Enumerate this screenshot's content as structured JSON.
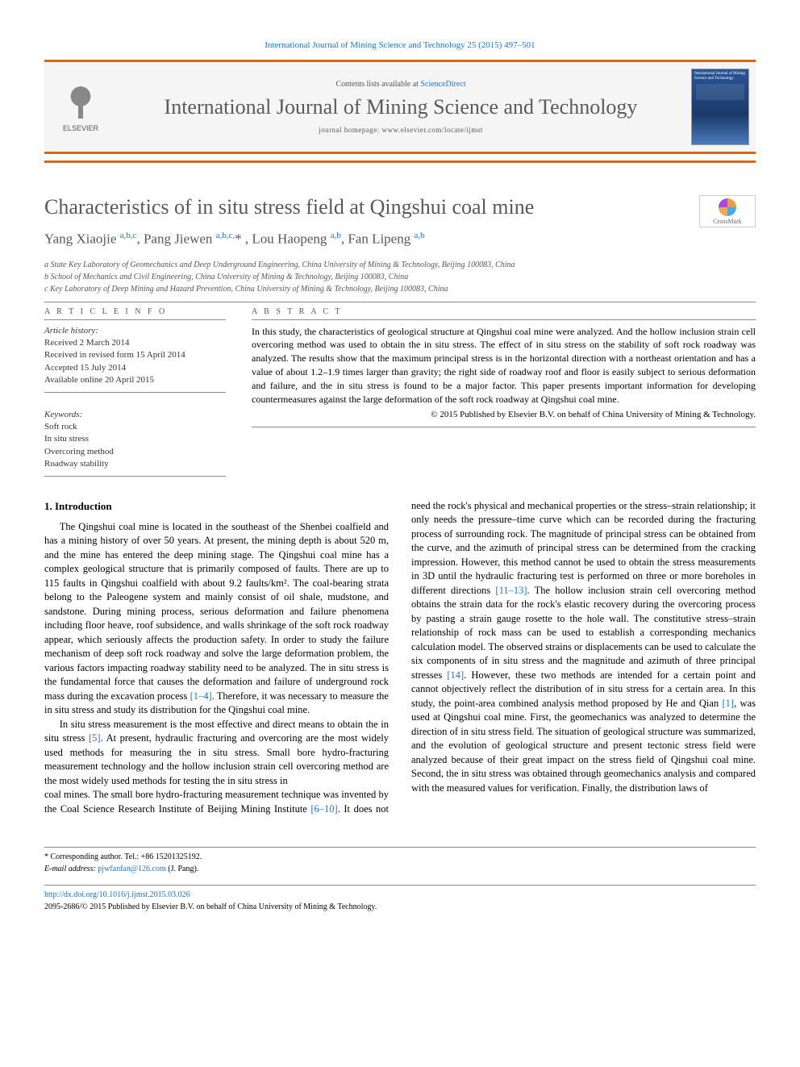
{
  "journal_ref": "International Journal of Mining Science and Technology 25 (2015) 497–501",
  "banner": {
    "contents_prefix": "Contents lists available at ",
    "contents_link": "ScienceDirect",
    "journal_title": "International Journal of Mining Science and Technology",
    "homepage": "journal homepage: www.elsevier.com/locate/ijmst",
    "publisher": "ELSEVIER",
    "cover_mini": "International Journal of Mining Science and Technology"
  },
  "crossmark": "CrossMark",
  "title": "Characteristics of in situ stress field at Qingshui coal mine",
  "authors_html": "Yang Xiaojie <sup>a,b,c</sup>, Pang Jiewen <sup>a,b,c,</sup>* , Lou Haopeng <sup>a,b</sup>, Fan Lipeng <sup>a,b</sup>",
  "affiliations": {
    "a": "a State Key Laboratory of Geomechanics and Deep Underground Engineering, China University of Mining & Technology, Beijing 100083, China",
    "b": "b School of Mechanics and Civil Engineering, China University of Mining & Technology, Beijing 100083, China",
    "c": "c Key Laboratory of Deep Mining and Hazard Prevention, China University of Mining & Technology, Beijing 100083, China"
  },
  "article_info": {
    "label": "A R T I C L E   I N F O",
    "history_label": "Article history:",
    "received": "Received 2 March 2014",
    "revised": "Received in revised form 15 April 2014",
    "accepted": "Accepted 15 July 2014",
    "online": "Available online 20 April 2015",
    "keywords_label": "Keywords:",
    "kw1": "Soft rock",
    "kw2": "In situ stress",
    "kw3": "Overcoring method",
    "kw4": "Roadway stability"
  },
  "abstract": {
    "label": "A B S T R A C T",
    "text": "In this study, the characteristics of geological structure at Qingshui coal mine were analyzed. And the hollow inclusion strain cell overcoring method was used to obtain the in situ stress. The effect of in situ stress on the stability of soft rock roadway was analyzed. The results show that the maximum principal stress is in the horizontal direction with a northeast orientation and has a value of about 1.2–1.9 times larger than gravity; the right side of roadway roof and floor is easily subject to serious deformation and failure, and the in situ stress is found to be a major factor. This paper presents important information for developing countermeasures against the large deformation of the soft rock roadway at Qingshui coal mine.",
    "copyright": "© 2015 Published by Elsevier B.V. on behalf of China University of Mining & Technology."
  },
  "body": {
    "h_intro": "1. Introduction",
    "p1": "The Qingshui coal mine is located in the southeast of the Shenbei coalfield and has a mining history of over 50 years. At present, the mining depth is about 520 m, and the mine has entered the deep mining stage. The Qingshui coal mine has a complex geological structure that is primarily composed of faults. There are up to 115 faults in Qingshui coalfield with about 9.2 faults/km². The coal-bearing strata belong to the Paleogene system and mainly consist of oil shale, mudstone, and sandstone. During mining process, serious deformation and failure phenomena including floor heave, roof subsidence, and walls shrinkage of the soft rock roadway appear, which seriously affects the production safety. In order to study the failure mechanism of deep soft rock roadway and solve the large deformation problem, the various factors impacting roadway stability need to be analyzed. The in situ stress is the fundamental force that causes the deformation and failure of underground rock mass during the excavation process ",
    "p1_cite": "[1–4]",
    "p1_tail": ". Therefore, it was necessary to measure the in situ stress and study its distribution for the Qingshui coal mine.",
    "p2": "In situ stress measurement is the most effective and direct means to obtain the in situ stress ",
    "p2_cite": "[5]",
    "p2_tail": ". At present, hydraulic fracturing and overcoring are the most widely used methods for measuring the in situ stress. Small bore hydro-fracturing measurement technology and the hollow inclusion strain cell overcoring method are the most widely used methods for testing the in situ stress in",
    "p3": "coal mines. The small bore hydro-fracturing measurement technique was invented by the Coal Science Research Institute of Beijing Mining Institute ",
    "p3_cite1": "[6–10]",
    "p3_mid": ". It does not need the rock's physical and mechanical properties or the stress–strain relationship; it only needs the pressure–time curve which can be recorded during the fracturing process of surrounding rock. The magnitude of principal stress can be obtained from the curve, and the azimuth of principal stress can be determined from the cracking impression. However, this method cannot be used to obtain the stress measurements in 3D until the hydraulic fracturing test is performed on three or more boreholes in different directions ",
    "p3_cite2": "[11–13]",
    "p3_mid2": ". The hollow inclusion strain cell overcoring method obtains the strain data for the rock's elastic recovery during the overcoring process by pasting a strain gauge rosette to the hole wall. The constitutive stress–strain relationship of rock mass can be used to establish a corresponding mechanics calculation model. The observed strains or displacements can be used to calculate the six components of in situ stress and the magnitude and azimuth of three principal stresses ",
    "p3_cite3": "[14]",
    "p3_mid3": ". However, these two methods are intended for a certain point and cannot objectively reflect the distribution of in situ stress for a certain area. In this study, the point-area combined analysis method proposed by He and Qian ",
    "p3_cite4": "[1]",
    "p3_tail": ", was used at Qingshui coal mine. First, the geomechanics was analyzed to determine the direction of in situ stress field. The situation of geological structure was summarized, and the evolution of geological structure and present tectonic stress field were analyzed because of their great impact on the stress field of Qingshui coal mine. Second, the in situ stress was obtained through geomechanics analysis and compared with the measured values for verification. Finally, the distribution laws of"
  },
  "footer": {
    "corr_label": "* Corresponding author. Tel.: +86 15201325192.",
    "email_label": "E-mail address: ",
    "email": "pjwfanfan@126.com",
    "email_tail": " (J. Pang).",
    "doi": "http://dx.doi.org/10.1016/j.ijmst.2015.03.026",
    "issn_line": "2095-2686/© 2015 Published by Elsevier B.V. on behalf of China University of Mining & Technology."
  },
  "colors": {
    "accent_orange": "#d2691e",
    "link_blue": "#1976d2",
    "text_gray": "#585858",
    "bg_gray": "#f5f5f5"
  },
  "typography": {
    "title_fontsize": 26,
    "authors_fontsize": 17,
    "body_fontsize": 12.5,
    "abstract_fontsize": 12,
    "info_fontsize": 11,
    "footer_fontsize": 10
  }
}
